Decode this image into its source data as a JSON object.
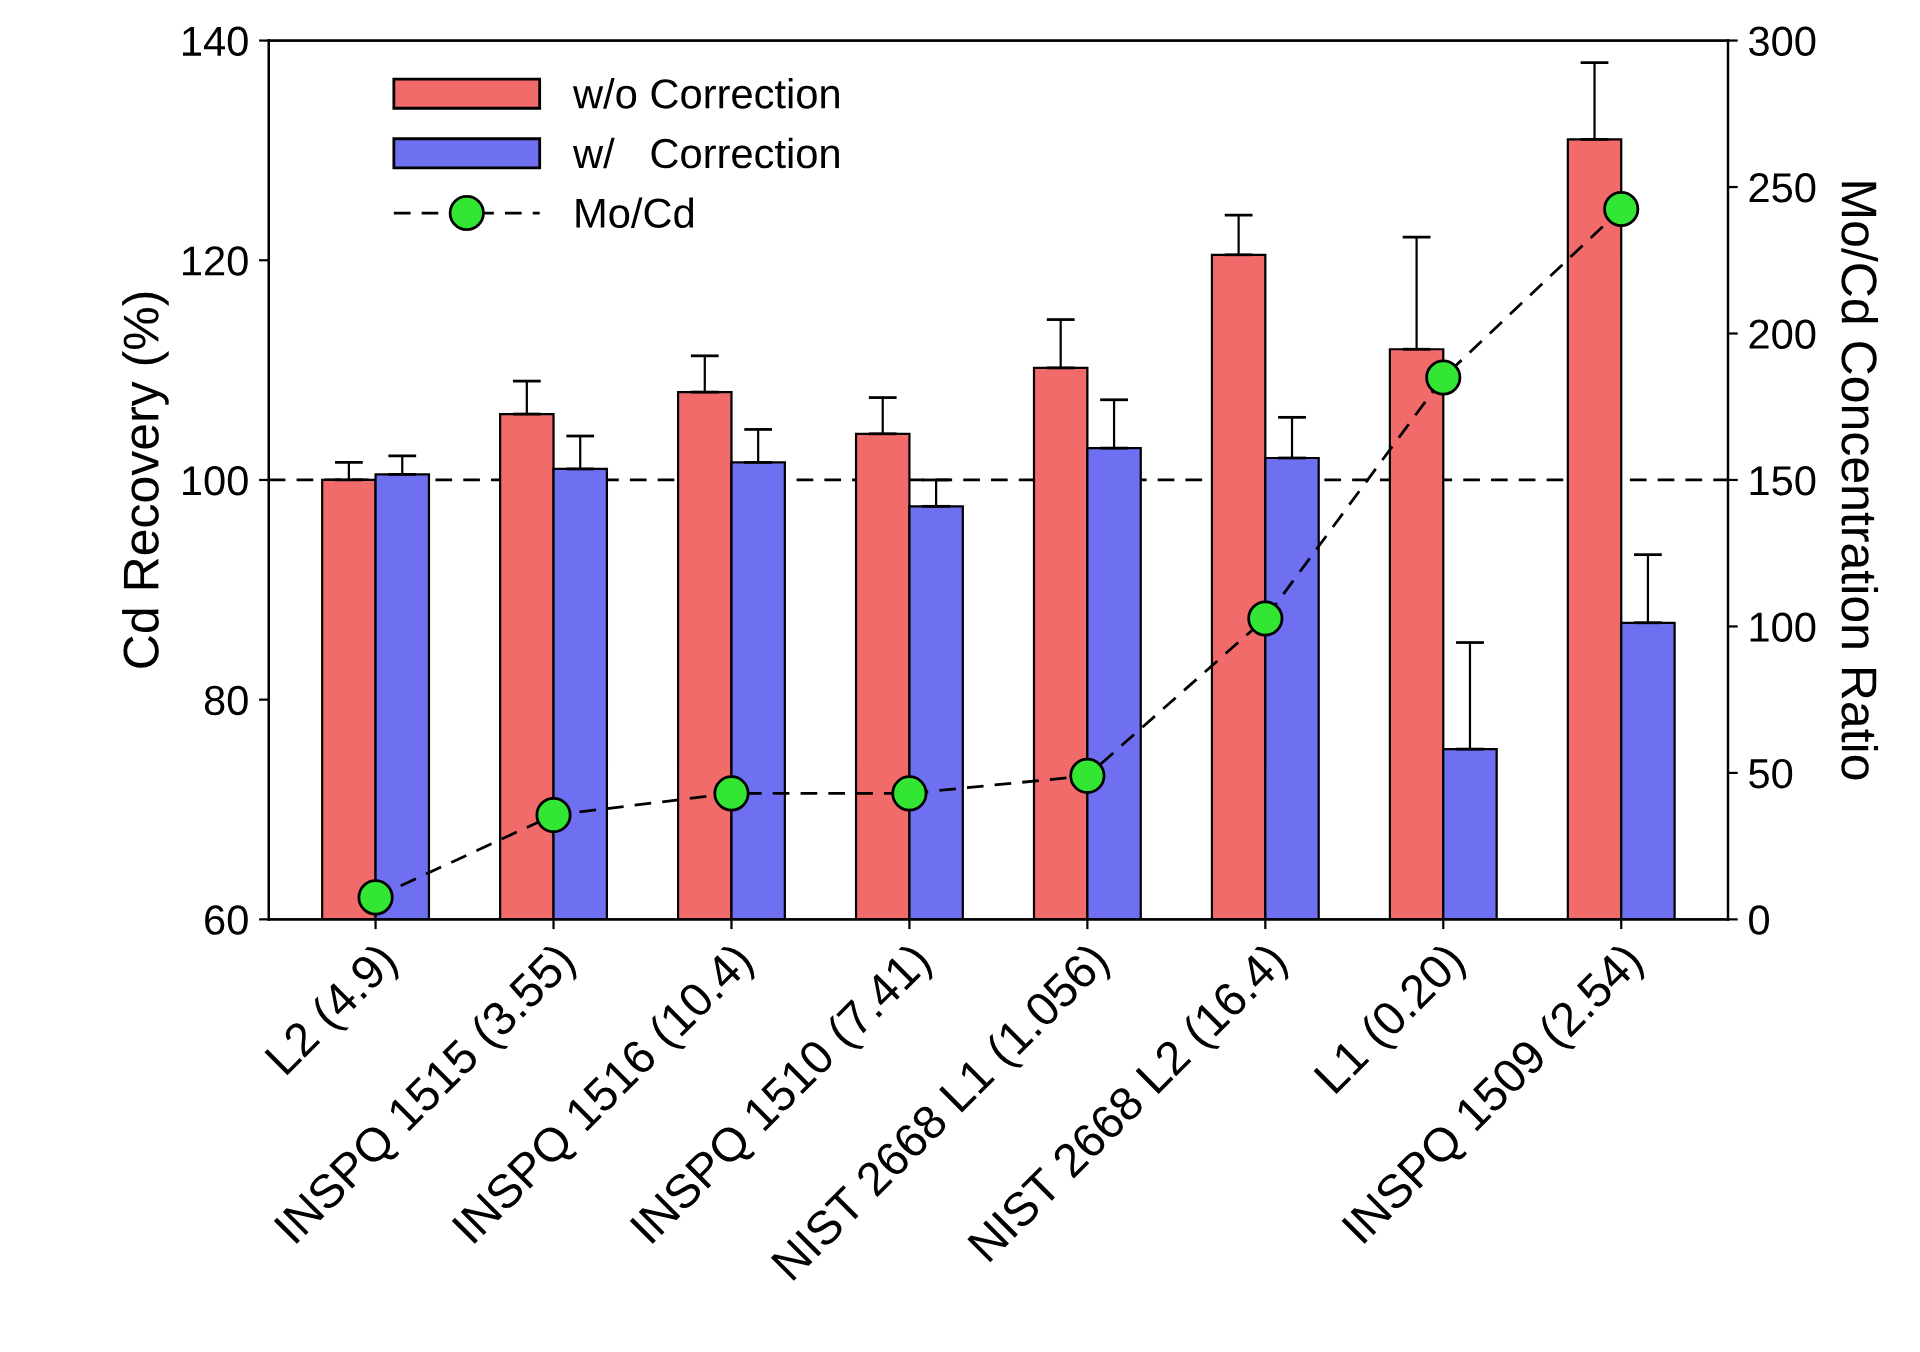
{
  "chart_data": {
    "type": "bar",
    "ylabel": "Cd Recovery (%)",
    "y2label": "Mo/Cd Concentration Ratio",
    "categories": [
      "L2 (4.9)",
      "INSPQ 1515 (3.55)",
      "INSPQ 1516 (10.4)",
      "INSPQ 1510 (7.41)",
      "NIST 2668 L1 (1.056)",
      "NIST 2668 L2 (16.4)",
      "L1 (0.20)",
      "INSPQ 1509 (2.54)"
    ],
    "series": [
      {
        "name": "w/o Correction",
        "color": "#f26b6b",
        "values": [
          100,
          106,
          108,
          104.2,
          110.2,
          120.5,
          111.9,
          131
        ],
        "errors": [
          [
            100,
            101.6
          ],
          [
            106,
            109
          ],
          [
            108,
            111.3
          ],
          [
            104.2,
            107.5
          ],
          [
            110.2,
            114.6
          ],
          [
            120.5,
            124.1
          ],
          [
            111.9,
            122.1
          ],
          [
            131,
            138
          ]
        ]
      },
      {
        "name": "w/   Correction",
        "color": "#6f6ff2",
        "values": [
          100.5,
          101,
          101.6,
          97.6,
          102.9,
          102,
          75.5,
          87
        ],
        "errors": [
          [
            100.5,
            102.2
          ],
          [
            101,
            104
          ],
          [
            101.6,
            104.6
          ],
          [
            97.6,
            100
          ],
          [
            102.9,
            107.3
          ],
          [
            102,
            105.7
          ],
          [
            75.5,
            85.2
          ],
          [
            87,
            93.2
          ]
        ]
      },
      {
        "name": "Mo/Cd",
        "type": "line",
        "axis": "y2",
        "color": "#33e633",
        "marker": "circle",
        "line_style": "dashed",
        "values": [
          7.5,
          35.6,
          43,
          43,
          49,
          102.7,
          185,
          242.5
        ]
      }
    ],
    "ylim": [
      60,
      140
    ],
    "yticks": [
      60,
      80,
      100,
      120,
      140
    ],
    "y2lim": [
      0,
      300
    ],
    "y2ticks": [
      0,
      50,
      100,
      150,
      200,
      250,
      300
    ],
    "ref_lines": [
      {
        "axis": "y",
        "value": 100,
        "line_style": "dashed",
        "color": "#000000"
      }
    ],
    "legend": "top left",
    "grid": false
  }
}
